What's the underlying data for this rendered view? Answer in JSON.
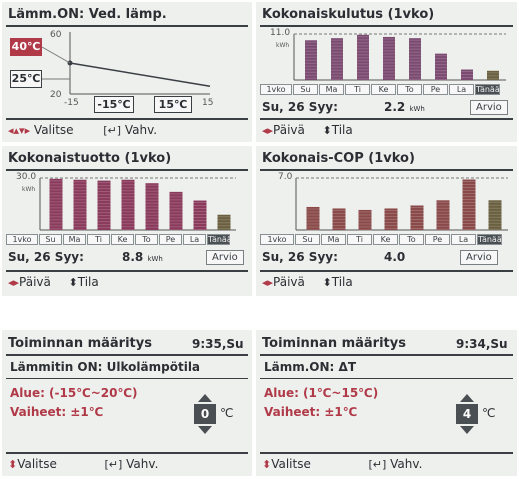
{
  "heating_curve": {
    "title": "Lämm.ON: Ved. lämp.",
    "set_high": "40℃",
    "set_low": "25℃",
    "y_top": "60",
    "y_bottom": "20",
    "x_left": "-15",
    "x_right": "15",
    "sel_outdoor_low": "-15℃",
    "sel_outdoor_high": "15℃",
    "footer_select": "Valitse",
    "footer_confirm": "Vahv.",
    "nav_icon": "up-down-left-right-arrows-icon",
    "enter_icon": "enter-icon"
  },
  "days": [
    "1vko",
    "Su",
    "Ma",
    "Ti",
    "Ke",
    "To",
    "Pe",
    "La",
    "Tänään"
  ],
  "consumption": {
    "title": "Kokonaiskulutus (1vko)",
    "date": "Su, 26 Syy:",
    "value": "2.2",
    "unit": "kWh",
    "y_max_label": "11.0",
    "y_unit": "kWh",
    "arvio": "Arvio",
    "footer_day": "Päivä",
    "footer_mode": "Tila"
  },
  "production": {
    "title": "Kokonaistuotto (1vko)",
    "date": "Su, 26 Syy:",
    "value": "8.8",
    "unit": "kWh",
    "y_max_label": "30.0",
    "y_unit": "kWh",
    "arvio": "Arvio",
    "footer_day": "Päivä",
    "footer_mode": "Tila"
  },
  "cop": {
    "title": "Kokonais-COP (1vko)",
    "date": "Su, 26 Syy:",
    "value": "4.0",
    "y_max_label": "7.0",
    "arvio": "Arvio",
    "footer_day": "Päivä",
    "footer_mode": "Tila"
  },
  "setting_outdoor": {
    "title": "Toiminnan määritys",
    "time": "9:35,Su",
    "mode": "Lämmitin ON: Ulkolämpötila",
    "range": "Alue: (-15℃~20℃)",
    "step": "Vaiheet: ±1℃",
    "value": "0",
    "unit": "℃",
    "footer_select": "Valitse",
    "footer_confirm": "Vahv."
  },
  "setting_delta": {
    "title": "Toiminnan määritys",
    "time": "9:34,Su",
    "mode": "Lämm.ON: ΔT",
    "range": "Alue: (1℃~15℃)",
    "step": "Vaiheet: ±1℃",
    "value": "4",
    "unit": "℃",
    "footer_select": "Valitse",
    "footer_confirm": "Vahv."
  },
  "chart_data": [
    {
      "type": "bar",
      "title": "Kokonaiskulutus (1vko)",
      "categories": [
        "Su",
        "Ma",
        "Ti",
        "Ke",
        "To",
        "Pe",
        "La",
        "Tänään"
      ],
      "values": [
        9.5,
        10.0,
        10.8,
        10.3,
        10.0,
        6.3,
        2.5,
        2.2
      ],
      "ylabel": "kWh",
      "ylim": [
        0,
        11.0
      ]
    },
    {
      "type": "bar",
      "title": "Kokonaistuotto (1vko)",
      "categories": [
        "Su",
        "Ma",
        "Ti",
        "Ke",
        "To",
        "Pe",
        "La",
        "Tänään"
      ],
      "values": [
        29.5,
        29.0,
        28.5,
        29.0,
        27.0,
        22.0,
        17.0,
        8.8
      ],
      "ylabel": "kWh",
      "ylim": [
        0,
        30.0
      ]
    },
    {
      "type": "bar",
      "title": "Kokonais-COP (1vko)",
      "categories": [
        "Su",
        "Ma",
        "Ti",
        "Ke",
        "To",
        "Pe",
        "La",
        "Tänään"
      ],
      "values": [
        3.1,
        2.9,
        2.7,
        2.9,
        3.3,
        4.0,
        6.8,
        4.0
      ],
      "ylim": [
        0,
        7.0
      ]
    },
    {
      "type": "line",
      "title": "Lämm.ON: Ved. lämp.",
      "x": [
        -15,
        15
      ],
      "values": [
        40,
        25
      ],
      "xlim": [
        -15,
        15
      ],
      "ylim": [
        20,
        60
      ]
    }
  ]
}
